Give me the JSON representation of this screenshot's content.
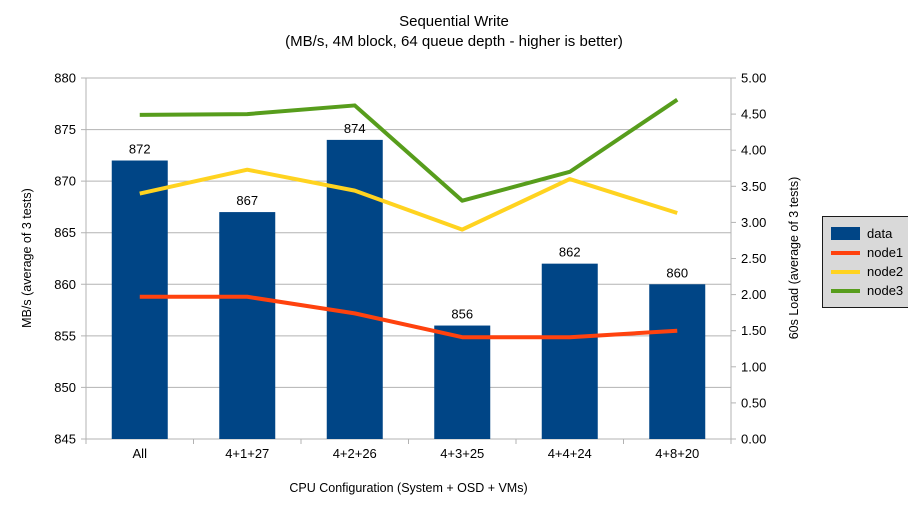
{
  "chart_data": {
    "type": "combo",
    "title": "Sequential Write",
    "subtitle": "(MB/s, 4M block, 64 queue depth - higher is better)",
    "categories": [
      "All",
      "4+1+27",
      "4+2+26",
      "4+3+25",
      "4+4+24",
      "4+8+20"
    ],
    "series": [
      {
        "name": "data",
        "type": "bar",
        "axis": "left",
        "color": "#004586",
        "values": [
          872,
          867,
          874,
          856,
          862,
          860
        ],
        "labels": [
          "872",
          "867",
          "874",
          "856",
          "862",
          "860"
        ]
      },
      {
        "name": "node1",
        "type": "line",
        "axis": "right",
        "color": "#ff420e",
        "values": [
          1.97,
          1.97,
          1.74,
          1.41,
          1.41,
          1.5
        ]
      },
      {
        "name": "node2",
        "type": "line",
        "axis": "right",
        "color": "#ffd320",
        "values": [
          3.4,
          3.73,
          3.44,
          2.9,
          3.6,
          3.13
        ]
      },
      {
        "name": "node3",
        "type": "line",
        "axis": "right",
        "color": "#579d1c",
        "values": [
          4.49,
          4.5,
          4.62,
          3.3,
          3.7,
          4.7
        ]
      }
    ],
    "xlabel": "CPU Configuration (System + OSD + VMs)",
    "ylabel_left": "MB/s (average of 3 tests)",
    "ylabel_right": "60s Load (average of 3 tests)",
    "left_axis": {
      "min": 845,
      "max": 880,
      "step": 5,
      "ticks": [
        "845",
        "850",
        "855",
        "860",
        "865",
        "870",
        "875",
        "880"
      ]
    },
    "right_axis": {
      "min": 0,
      "max": 5,
      "step": 0.5,
      "ticks": [
        "0.00",
        "0.50",
        "1.00",
        "1.50",
        "2.00",
        "2.50",
        "3.00",
        "3.50",
        "4.00",
        "4.50",
        "5.00"
      ]
    },
    "grid": "horizontal (left-axis major)",
    "legend_position": "right"
  },
  "colors": {
    "background": "#ffffff",
    "grid": "#b3b3b3",
    "axis": "#b3b3b3",
    "text": "#000000",
    "legend_background": "#d9d9d9",
    "legend_border": "#1a1a1a"
  }
}
